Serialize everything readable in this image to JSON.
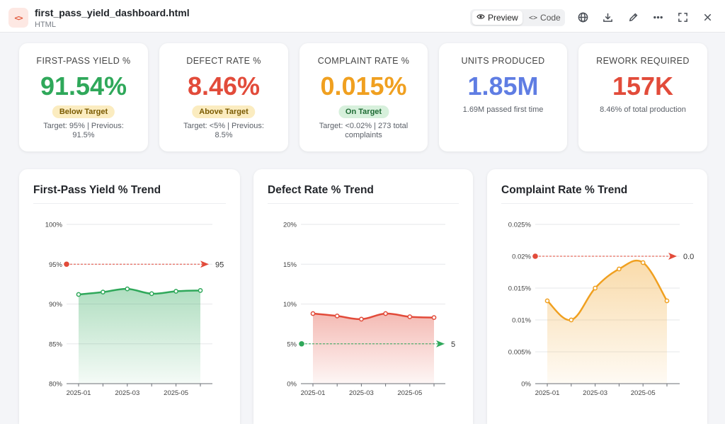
{
  "header": {
    "file_icon": "code-brackets-icon",
    "title": "first_pass_yield_dashboard.html",
    "type": "HTML",
    "preview_label": "Preview",
    "code_label": "Code",
    "tools": [
      "globe-icon",
      "download-icon",
      "edit-pencil-icon",
      "more-icon",
      "fullscreen-icon",
      "close-icon"
    ]
  },
  "kpis": [
    {
      "label": "FIRST-PASS YIELD %",
      "value": "91.54%",
      "color": "#2fa85a",
      "badge": "Below Target",
      "badge_bg": "#fbecc0",
      "badge_color": "#7a5a00",
      "sub": "Target: 95% | Previous: 91.5%"
    },
    {
      "label": "DEFECT RATE %",
      "value": "8.46%",
      "color": "#e24b3a",
      "badge": "Above Target",
      "badge_bg": "#fbecc0",
      "badge_color": "#7a5a00",
      "sub": "Target: <5% | Previous: 8.5%"
    },
    {
      "label": "COMPLAINT RATE %",
      "value": "0.015%",
      "color": "#f0a020",
      "badge": "On Target",
      "badge_bg": "#d7f0dc",
      "badge_color": "#1e6b34",
      "sub": "Target: <0.02% | 273 total complaints"
    },
    {
      "label": "UNITS PRODUCED",
      "value": "1.85M",
      "color": "#5f7de3",
      "sub": "1.69M passed first time"
    },
    {
      "label": "REWORK REQUIRED",
      "value": "157K",
      "color": "#e24b3a",
      "sub": "8.46% of total production"
    }
  ],
  "chart_data": [
    {
      "type": "area",
      "title": "First-Pass Yield % Trend",
      "x": [
        "2025-01",
        "2025-02",
        "2025-03",
        "2025-04",
        "2025-05",
        "2025-06"
      ],
      "x_tick_labels": [
        "2025-01",
        "2025-03",
        "2025-05"
      ],
      "values": [
        91.2,
        91.5,
        91.9,
        91.3,
        91.6,
        91.7
      ],
      "ylim": [
        80,
        100
      ],
      "y_ticks": [
        80,
        85,
        90,
        95,
        100
      ],
      "y_tick_labels": [
        "80%",
        "85%",
        "90%",
        "95%",
        "100%"
      ],
      "target": 95,
      "target_label": "95",
      "color": "#2fa85a",
      "target_color": "#e24b3a",
      "smooth": true,
      "grid": true
    },
    {
      "type": "area",
      "title": "Defect Rate % Trend",
      "x": [
        "2025-01",
        "2025-02",
        "2025-03",
        "2025-04",
        "2025-05",
        "2025-06"
      ],
      "x_tick_labels": [
        "2025-01",
        "2025-03",
        "2025-05"
      ],
      "values": [
        8.8,
        8.5,
        8.1,
        8.8,
        8.4,
        8.3
      ],
      "ylim": [
        0,
        20
      ],
      "y_ticks": [
        0,
        5,
        10,
        15,
        20
      ],
      "y_tick_labels": [
        "0%",
        "5%",
        "10%",
        "15%",
        "20%"
      ],
      "target": 5,
      "target_label": "5",
      "color": "#e24b3a",
      "target_color": "#2fa85a",
      "smooth": true,
      "grid": true
    },
    {
      "type": "area",
      "title": "Complaint Rate % Trend",
      "x": [
        "2025-01",
        "2025-02",
        "2025-03",
        "2025-04",
        "2025-05",
        "2025-06"
      ],
      "x_tick_labels": [
        "2025-01",
        "2025-03",
        "2025-05"
      ],
      "values": [
        0.013,
        0.01,
        0.015,
        0.018,
        0.019,
        0.013
      ],
      "ylim": [
        0,
        0.025
      ],
      "y_ticks": [
        0,
        0.005,
        0.01,
        0.015,
        0.02,
        0.025
      ],
      "y_tick_labels": [
        "0%",
        "0.005%",
        "0.01%",
        "0.015%",
        "0.02%",
        "0.025%"
      ],
      "target": 0.02,
      "target_label": "0.0",
      "color": "#f0a020",
      "target_color": "#e24b3a",
      "smooth": true,
      "grid": true
    }
  ]
}
